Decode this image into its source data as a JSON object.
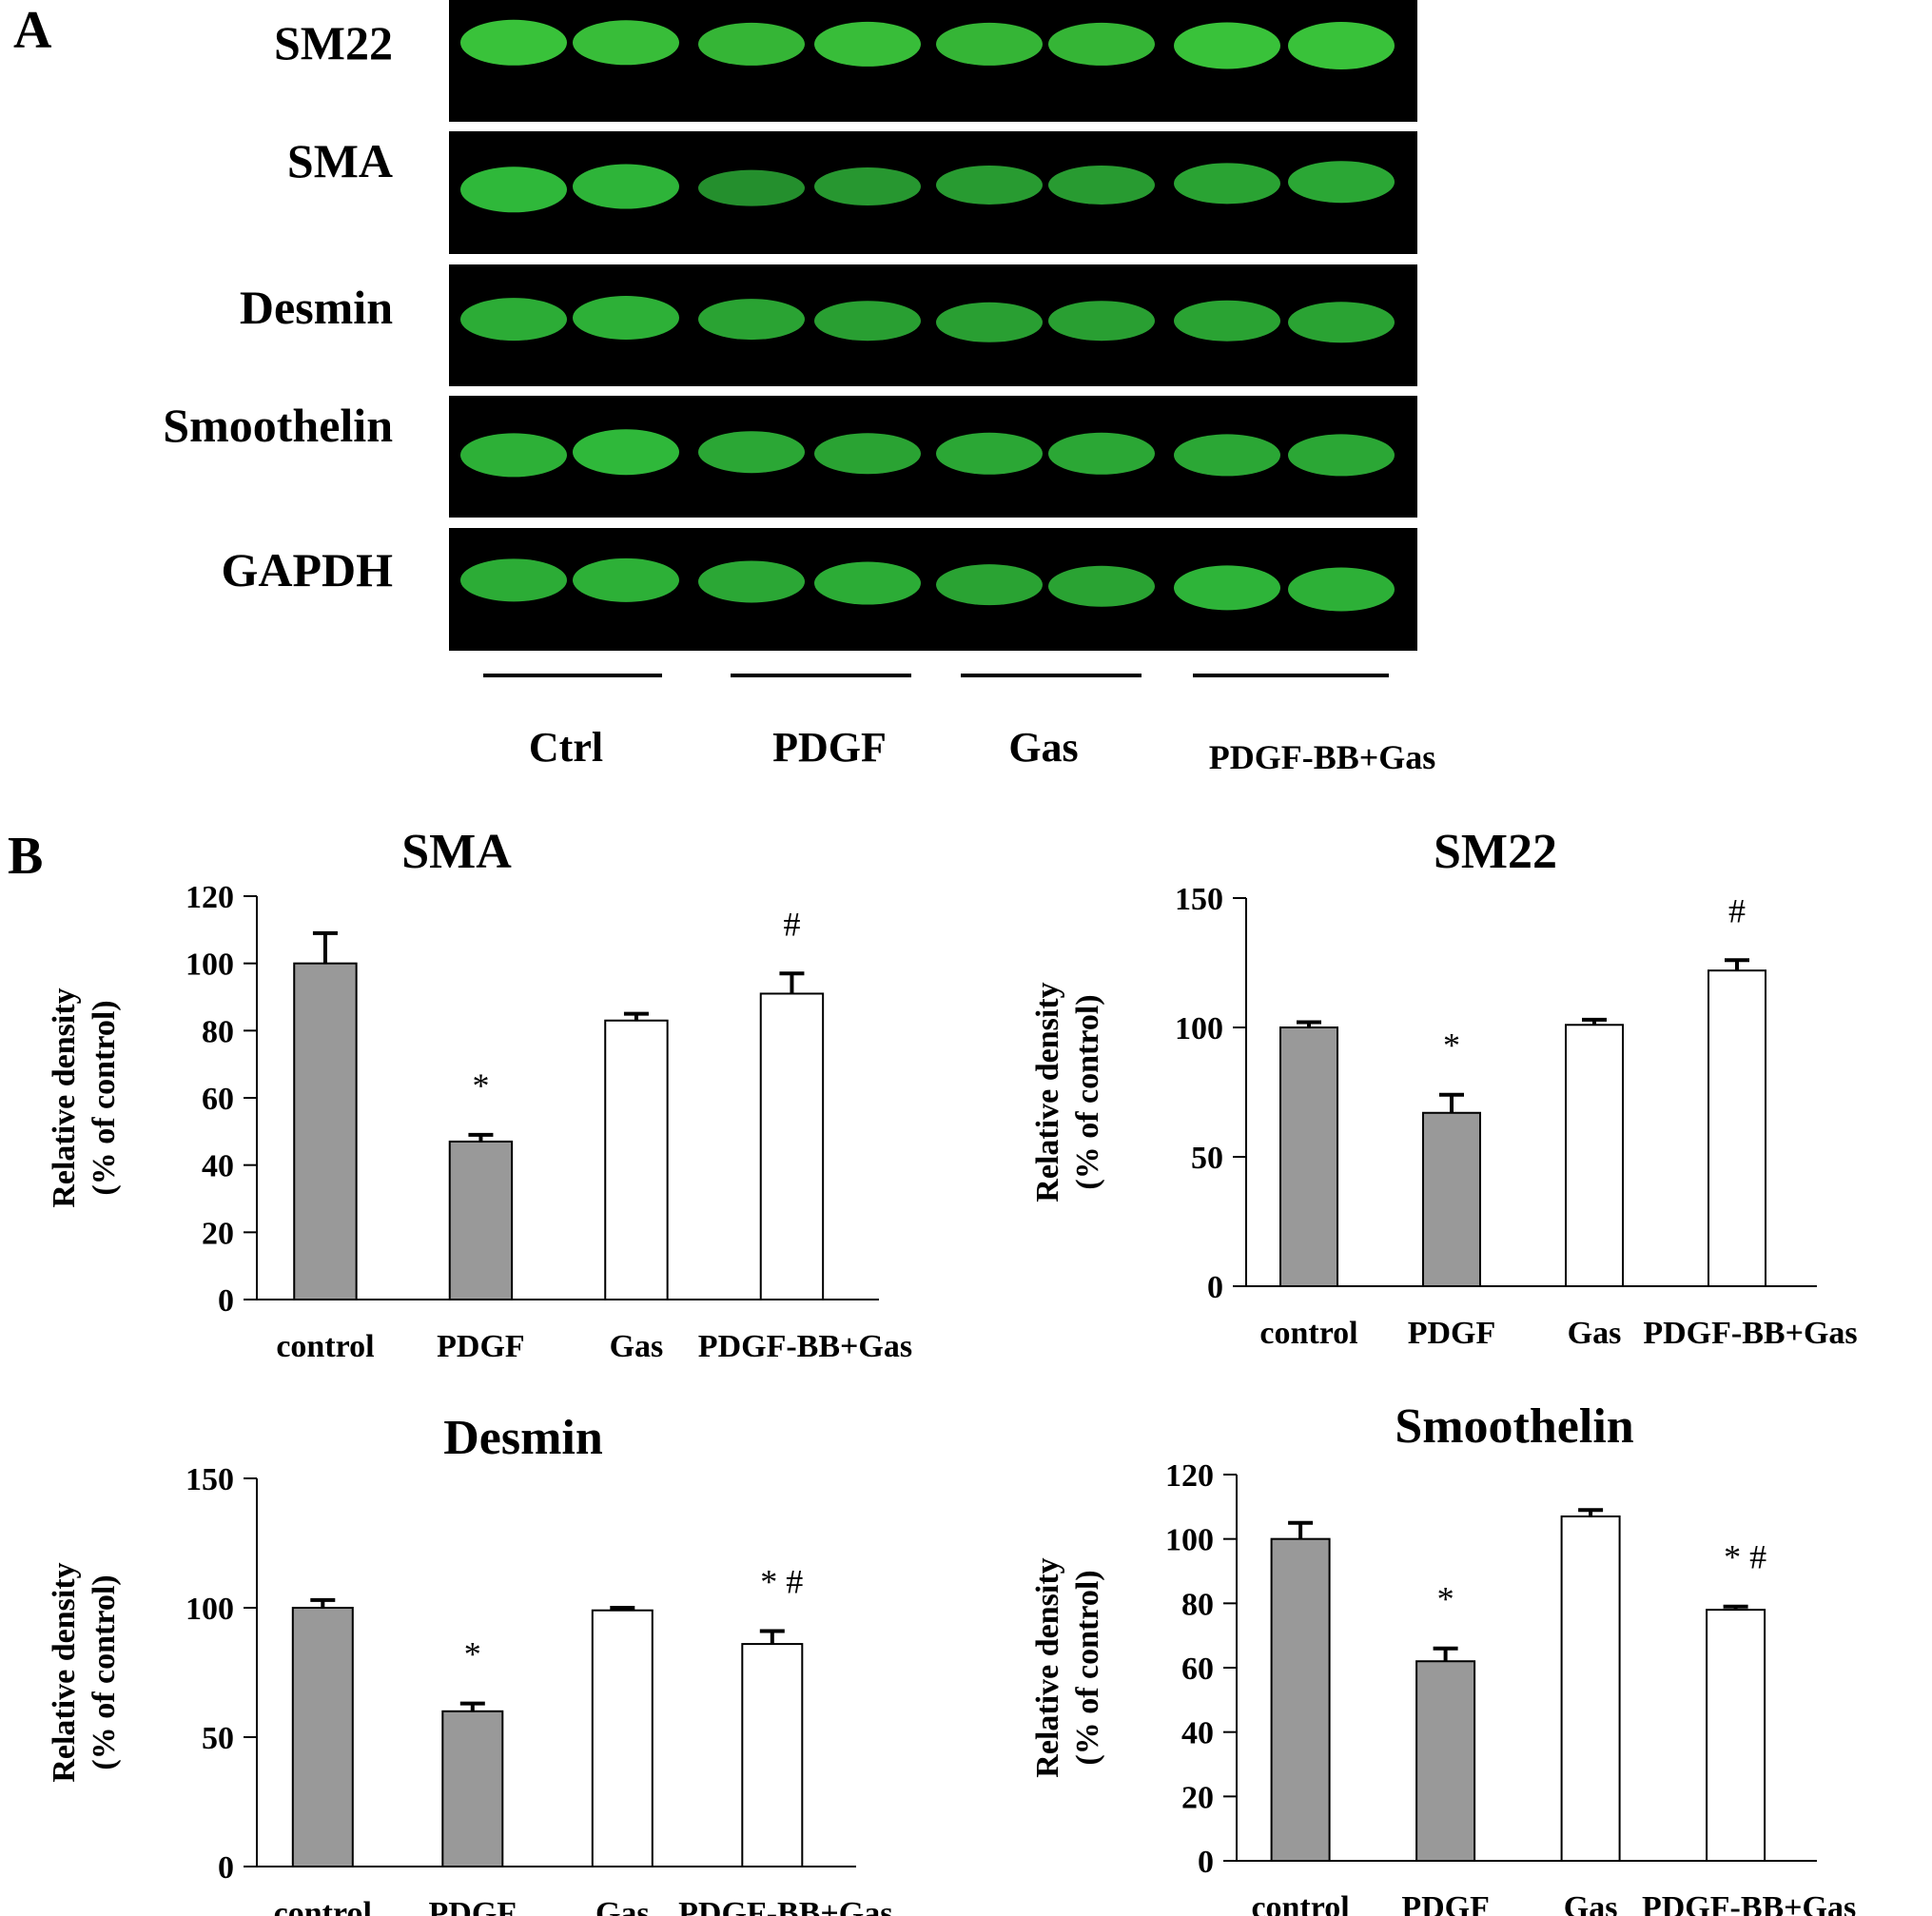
{
  "panel_a": {
    "letter": "A",
    "proteins": [
      {
        "name": "SM22",
        "band": {
          "color": "#39c23a",
          "lanes": [
            1.0,
            0.95,
            0.85,
            0.95,
            0.85,
            0.85,
            1.05,
            1.1
          ],
          "offsets": [
            0,
            0,
            0.05,
            0.05,
            0.05,
            0.05,
            0.1,
            0.1
          ]
        }
      },
      {
        "name": "SMA",
        "band": {
          "color": "#2fb83a",
          "lanes": [
            1.0,
            0.95,
            0.5,
            0.6,
            0.65,
            0.65,
            0.75,
            0.8
          ],
          "offsets": [
            0.5,
            0.4,
            0.45,
            0.4,
            0.35,
            0.35,
            0.3,
            0.25
          ]
        }
      },
      {
        "name": "Desmin",
        "band": {
          "color": "#2fb83a",
          "lanes": [
            0.85,
            0.9,
            0.75,
            0.7,
            0.7,
            0.7,
            0.75,
            0.75
          ],
          "offsets": [
            0.4,
            0.35,
            0.4,
            0.45,
            0.5,
            0.45,
            0.45,
            0.5
          ]
        }
      },
      {
        "name": "Smoothelin",
        "band": {
          "color": "#2fb83a",
          "lanes": [
            0.9,
            1.0,
            0.8,
            0.75,
            0.8,
            0.8,
            0.8,
            0.8
          ],
          "offsets": [
            0.55,
            0.45,
            0.45,
            0.5,
            0.5,
            0.5,
            0.55,
            0.55
          ]
        }
      },
      {
        "name": "GAPDH",
        "band": {
          "color": "#2fb83a",
          "lanes": [
            0.85,
            0.9,
            0.8,
            0.85,
            0.75,
            0.75,
            0.95,
            0.9
          ],
          "offsets": [
            0.3,
            0.3,
            0.35,
            0.4,
            0.45,
            0.5,
            0.55,
            0.6
          ]
        }
      }
    ],
    "groups": [
      "Ctrl",
      "PDGF",
      "Gas",
      "PDGF-BB+Gas"
    ]
  },
  "panel_b": {
    "letter": "B"
  },
  "chart_data": [
    {
      "type": "bar",
      "title": "SMA",
      "ylabel": [
        "Relative density",
        "(% of control)"
      ],
      "categories": [
        "control",
        "PDGF",
        "Gas",
        "PDGF-BB+Gas"
      ],
      "values": [
        100,
        47,
        83,
        91
      ],
      "errors": [
        9,
        2,
        2,
        6
      ],
      "bar_colors": [
        "#999999",
        "#999999",
        "#ffffff",
        "#ffffff"
      ],
      "significance": [
        "",
        "*",
        "",
        "#"
      ],
      "ylim": [
        0,
        120
      ],
      "yticks": [
        0,
        20,
        40,
        60,
        80,
        100,
        120
      ]
    },
    {
      "type": "bar",
      "title": "SM22",
      "ylabel": [
        "Relative density",
        "(% of control)"
      ],
      "categories": [
        "control",
        "PDGF",
        "Gas",
        "PDGF-BB+Gas"
      ],
      "values": [
        100,
        67,
        101,
        122
      ],
      "errors": [
        2,
        7,
        2,
        4
      ],
      "bar_colors": [
        "#999999",
        "#999999",
        "#ffffff",
        "#ffffff"
      ],
      "significance": [
        "",
        "*",
        "",
        "#"
      ],
      "ylim": [
        0,
        150
      ],
      "yticks": [
        0,
        50,
        100,
        150
      ]
    },
    {
      "type": "bar",
      "title": "Desmin",
      "ylabel": [
        "Relative density",
        "(% of control)"
      ],
      "categories": [
        "control",
        "PDGF",
        "Gas",
        "PDGF-BB+Gas"
      ],
      "values": [
        100,
        60,
        99,
        86
      ],
      "errors": [
        3,
        3,
        1,
        5
      ],
      "bar_colors": [
        "#999999",
        "#999999",
        "#ffffff",
        "#ffffff"
      ],
      "significance": [
        "",
        "*",
        "",
        "* #"
      ],
      "ylim": [
        0,
        150
      ],
      "yticks": [
        0,
        50,
        100,
        150
      ]
    },
    {
      "type": "bar",
      "title": "Smoothelin",
      "ylabel": [
        "Relative density",
        "(% of control)"
      ],
      "categories": [
        "control",
        "PDGF",
        "Gas",
        "PDGF-BB+Gas"
      ],
      "values": [
        100,
        62,
        107,
        78
      ],
      "errors": [
        5,
        4,
        2,
        1
      ],
      "bar_colors": [
        "#999999",
        "#999999",
        "#ffffff",
        "#ffffff"
      ],
      "significance": [
        "",
        "*",
        "",
        "* #"
      ],
      "ylim": [
        0,
        120
      ],
      "yticks": [
        0,
        20,
        40,
        60,
        80,
        100,
        120
      ]
    }
  ]
}
